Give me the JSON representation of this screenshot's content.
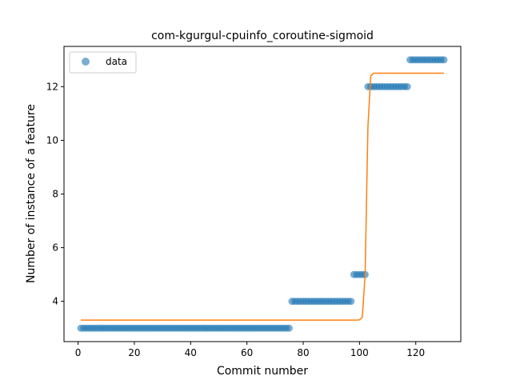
{
  "chart_data": {
    "type": "scatter",
    "title": "com-kgurgul-cpuinfo_coroutine-sigmoid",
    "xlabel": "Commit number",
    "ylabel": "Number of instance of a feature",
    "xlim": [
      -5,
      136
    ],
    "ylim": [
      2.5,
      13.5
    ],
    "xticks": [
      0,
      20,
      40,
      60,
      80,
      100,
      120
    ],
    "yticks": [
      4,
      6,
      8,
      10,
      12
    ],
    "legend": {
      "position": "top-left",
      "entries": [
        "data"
      ]
    },
    "colors": {
      "data": "#1f77b4",
      "fit": "#ff7f0e"
    },
    "series": [
      {
        "name": "data",
        "kind": "points",
        "segments": [
          {
            "x_start": 1,
            "x_end": 75,
            "y": 3
          },
          {
            "x_start": 76,
            "x_end": 97,
            "y": 4
          },
          {
            "x_start": 98,
            "x_end": 102,
            "y": 5
          },
          {
            "x_start": 103,
            "x_end": 117,
            "y": 12
          },
          {
            "x_start": 118,
            "x_end": 130,
            "y": 13
          }
        ]
      },
      {
        "kind": "line",
        "x": [
          1,
          99,
          100,
          101,
          102,
          103,
          104,
          105,
          130
        ],
        "y": [
          3.3,
          3.3,
          3.31,
          3.4,
          5.0,
          10.5,
          12.4,
          12.5,
          12.5
        ]
      }
    ]
  }
}
